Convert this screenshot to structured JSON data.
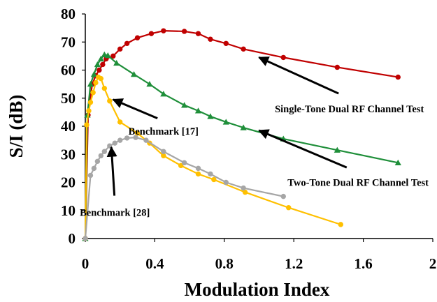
{
  "chart_data": {
    "type": "line",
    "xlabel": "Modulation Index",
    "ylabel": "S/I (dB)",
    "xlim": [
      0,
      2
    ],
    "ylim": [
      0,
      80
    ],
    "xticks": [
      "0",
      "0.4",
      "0.8",
      "1.2",
      "1.6",
      "2"
    ],
    "xtick_values": [
      0,
      0.4,
      0.8,
      1.2,
      1.6,
      2
    ],
    "yticks": [
      "0",
      "10",
      "20",
      "30",
      "40",
      "50",
      "60",
      "70",
      "80"
    ],
    "ytick_values": [
      0,
      10,
      20,
      30,
      40,
      50,
      60,
      70,
      80
    ],
    "grid": false,
    "legend": "none",
    "series": [
      {
        "name": "Single-Tone Dual RF Channel Test",
        "color": "#c00000",
        "marker": "circle",
        "points": [
          [
            0,
            0
          ],
          [
            0.016,
            44
          ],
          [
            0.04,
            55
          ],
          [
            0.06,
            58
          ],
          [
            0.08,
            60
          ],
          [
            0.1,
            62
          ],
          [
            0.12,
            64
          ],
          [
            0.16,
            65
          ],
          [
            0.2,
            67.5
          ],
          [
            0.24,
            69.5
          ],
          [
            0.3,
            71.5
          ],
          [
            0.38,
            73
          ],
          [
            0.45,
            74
          ],
          [
            0.57,
            73.8
          ],
          [
            0.65,
            73
          ],
          [
            0.72,
            71
          ],
          [
            0.81,
            69.5
          ],
          [
            0.91,
            67.5
          ],
          [
            1.14,
            64.5
          ],
          [
            1.45,
            61
          ],
          [
            1.8,
            57.5
          ]
        ]
      },
      {
        "name": "Two-Tone Dual RF Channel Test",
        "color": "#1f8f3a",
        "marker": "triangle",
        "points": [
          [
            0,
            0
          ],
          [
            0.012,
            44
          ],
          [
            0.03,
            55
          ],
          [
            0.05,
            58.5
          ],
          [
            0.07,
            62
          ],
          [
            0.09,
            64
          ],
          [
            0.11,
            65.5
          ],
          [
            0.13,
            65.2
          ],
          [
            0.18,
            62.5
          ],
          [
            0.28,
            58.5
          ],
          [
            0.37,
            55
          ],
          [
            0.45,
            51.5
          ],
          [
            0.57,
            47.5
          ],
          [
            0.65,
            45.5
          ],
          [
            0.72,
            43.5
          ],
          [
            0.81,
            41.5
          ],
          [
            0.91,
            39.5
          ],
          [
            1.14,
            35.5
          ],
          [
            1.45,
            31.5
          ],
          [
            1.8,
            27
          ]
        ]
      },
      {
        "name": "Benchmark [17]",
        "color": "#ffc000",
        "marker": "circle",
        "points": [
          [
            0,
            0
          ],
          [
            0.008,
            40.5
          ],
          [
            0.02,
            45.5
          ],
          [
            0.03,
            48.5
          ],
          [
            0.045,
            52
          ],
          [
            0.06,
            55.5
          ],
          [
            0.075,
            57.5
          ],
          [
            0.09,
            57
          ],
          [
            0.11,
            53.5
          ],
          [
            0.14,
            49
          ],
          [
            0.2,
            41.5
          ],
          [
            0.3,
            37.5
          ],
          [
            0.37,
            34
          ],
          [
            0.45,
            29.5
          ],
          [
            0.55,
            26
          ],
          [
            0.65,
            23
          ],
          [
            0.74,
            21
          ],
          [
            0.92,
            16.5
          ],
          [
            1.17,
            11
          ],
          [
            1.47,
            5
          ]
        ]
      },
      {
        "name": "Benchmark [28]",
        "color": "#a6a6a6",
        "marker": "circle",
        "points": [
          [
            0,
            0
          ],
          [
            0.03,
            22.5
          ],
          [
            0.05,
            25
          ],
          [
            0.07,
            27.5
          ],
          [
            0.09,
            29.5
          ],
          [
            0.11,
            31
          ],
          [
            0.14,
            33
          ],
          [
            0.17,
            34
          ],
          [
            0.2,
            35
          ],
          [
            0.24,
            35.8
          ],
          [
            0.29,
            36
          ],
          [
            0.35,
            35
          ],
          [
            0.45,
            31
          ],
          [
            0.57,
            27
          ],
          [
            0.65,
            25
          ],
          [
            0.72,
            23
          ],
          [
            0.81,
            20
          ],
          [
            0.91,
            18
          ],
          [
            1.14,
            15
          ]
        ]
      }
    ],
    "annotations": [
      {
        "text": "Single-Tone Dual RF Channel Test",
        "anchor": "middle",
        "tx": 1.52,
        "ty": 48.5,
        "ax": 1.0,
        "ay": 64.5
      },
      {
        "text": "Two-Tone Dual RF Channel Test",
        "anchor": "middle",
        "tx": 1.57,
        "ty": 22.2,
        "ax": 1.0,
        "ay": 38.5
      },
      {
        "text": "Benchmark [17]",
        "anchor": "middle",
        "tx": 0.45,
        "ty": 40.5,
        "ax": 0.16,
        "ay": 49.5
      },
      {
        "text": "Benchmark [28]",
        "anchor": "middle",
        "tx": 0.17,
        "ty": 11.5,
        "ax": 0.15,
        "ay": 32.5
      }
    ]
  }
}
